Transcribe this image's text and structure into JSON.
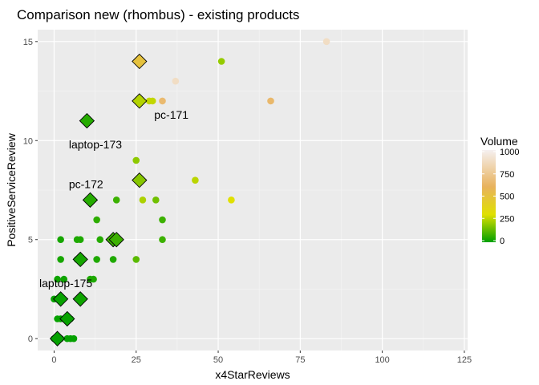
{
  "chart_data": {
    "type": "scatter",
    "title": "Comparison new (rhombus) - existing products",
    "xlabel": "x4StarReviews",
    "ylabel": "PositiveServiceReview",
    "xlim": [
      -5,
      126
    ],
    "ylim": [
      -0.6,
      15.6
    ],
    "x_ticks": [
      0,
      25,
      50,
      75,
      100,
      125
    ],
    "y_ticks": [
      0,
      5,
      10,
      15
    ],
    "grid": true,
    "background": "#ebebeb",
    "legend": {
      "title": "Volume",
      "placement": "right",
      "ticks": [
        0,
        250,
        500,
        750,
        1000
      ],
      "colors": [
        "#00a000",
        "#e0e000",
        "#e8b25c",
        "#f5f0f0"
      ],
      "range": [
        0,
        1000
      ]
    },
    "existing_products": {
      "shape": "circle",
      "points": [
        {
          "x": 83,
          "y": 15,
          "volume": 880
        },
        {
          "x": 51,
          "y": 14,
          "volume": 200
        },
        {
          "x": 37,
          "y": 13,
          "volume": 880
        },
        {
          "x": 30,
          "y": 12,
          "volume": 260
        },
        {
          "x": 29,
          "y": 12,
          "volume": 260
        },
        {
          "x": 33,
          "y": 12,
          "volume": 650
        },
        {
          "x": 66,
          "y": 12,
          "volume": 640
        },
        {
          "x": 25,
          "y": 9,
          "volume": 190
        },
        {
          "x": 43,
          "y": 8,
          "volume": 250
        },
        {
          "x": 27,
          "y": 7,
          "volume": 230
        },
        {
          "x": 31,
          "y": 7,
          "volume": 150
        },
        {
          "x": 54,
          "y": 7,
          "volume": 300
        },
        {
          "x": 19,
          "y": 7,
          "volume": 80
        },
        {
          "x": 13,
          "y": 6,
          "volume": 60
        },
        {
          "x": 33,
          "y": 6,
          "volume": 80
        },
        {
          "x": 2,
          "y": 5,
          "volume": 30
        },
        {
          "x": 7,
          "y": 5,
          "volume": 40
        },
        {
          "x": 8,
          "y": 5,
          "volume": 40
        },
        {
          "x": 14,
          "y": 5,
          "volume": 50
        },
        {
          "x": 18,
          "y": 5,
          "volume": 50
        },
        {
          "x": 33,
          "y": 5,
          "volume": 80
        },
        {
          "x": 2,
          "y": 4,
          "volume": 30
        },
        {
          "x": 7,
          "y": 4,
          "volume": 40
        },
        {
          "x": 13,
          "y": 4,
          "volume": 40
        },
        {
          "x": 18,
          "y": 4,
          "volume": 40
        },
        {
          "x": 25,
          "y": 4,
          "volume": 120
        },
        {
          "x": 1,
          "y": 3,
          "volume": 20
        },
        {
          "x": 3,
          "y": 3,
          "volume": 20
        },
        {
          "x": 11,
          "y": 3,
          "volume": 40
        },
        {
          "x": 12,
          "y": 3,
          "volume": 40
        },
        {
          "x": 0,
          "y": 2,
          "volume": 10
        },
        {
          "x": 1,
          "y": 1,
          "volume": 10
        },
        {
          "x": 2,
          "y": 1,
          "volume": 10
        },
        {
          "x": 3,
          "y": 1,
          "volume": 10
        },
        {
          "x": 5,
          "y": 1,
          "volume": 10
        },
        {
          "x": 0,
          "y": 0,
          "volume": 5
        },
        {
          "x": 2,
          "y": 0,
          "volume": 5
        },
        {
          "x": 4,
          "y": 0,
          "volume": 5
        },
        {
          "x": 5,
          "y": 0,
          "volume": 5
        },
        {
          "x": 6,
          "y": 0,
          "volume": 5
        }
      ]
    },
    "new_products": {
      "shape": "rhombus",
      "points": [
        {
          "x": 26,
          "y": 14,
          "volume": 500
        },
        {
          "x": 26,
          "y": 12,
          "volume": 240
        },
        {
          "x": 10,
          "y": 11,
          "volume": 50
        },
        {
          "x": 26,
          "y": 8,
          "volume": 180
        },
        {
          "x": 11,
          "y": 7,
          "volume": 50
        },
        {
          "x": 18,
          "y": 5,
          "volume": 80
        },
        {
          "x": 19,
          "y": 5,
          "volume": 80
        },
        {
          "x": 8,
          "y": 4,
          "volume": 30
        },
        {
          "x": 2,
          "y": 2,
          "volume": 10
        },
        {
          "x": 8,
          "y": 2,
          "volume": 20
        },
        {
          "x": 4,
          "y": 1,
          "volume": 10
        },
        {
          "x": 1,
          "y": 0,
          "volume": 5
        }
      ]
    },
    "annotations": [
      {
        "text": "pc-171",
        "x": 30.5,
        "y": 11.3
      },
      {
        "text": "laptop-173",
        "x": 4.5,
        "y": 9.8
      },
      {
        "text": "pc-172",
        "x": 4.5,
        "y": 7.8
      },
      {
        "text": "laptop-175",
        "x": -4.5,
        "y": 2.8
      }
    ]
  }
}
